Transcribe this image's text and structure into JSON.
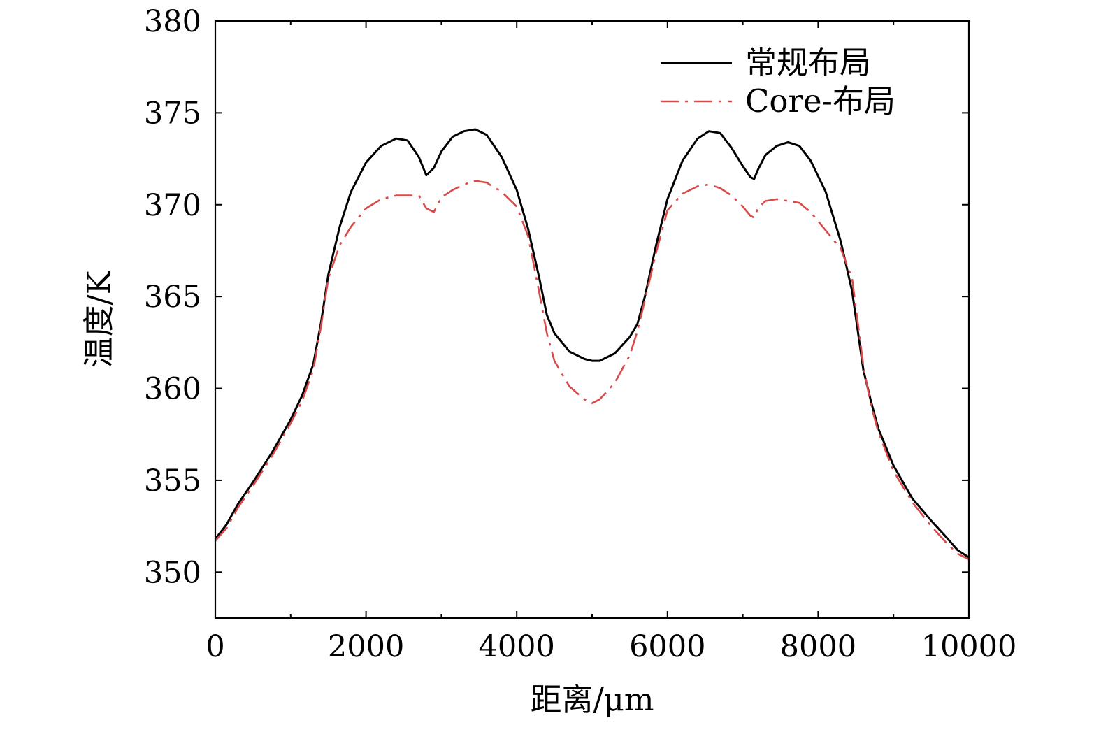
{
  "chart_data": {
    "type": "line",
    "title": "",
    "xlabel": "距离/μm",
    "ylabel": "温度/K",
    "xlim": [
      0,
      10000
    ],
    "ylim": [
      347.5,
      380
    ],
    "xticks": [
      0,
      2000,
      4000,
      6000,
      8000,
      10000
    ],
    "xtick_labels": [
      "0",
      "2000",
      "4000",
      "6000",
      "8000",
      "10000"
    ],
    "xminor_ticks": [
      1000,
      3000,
      5000,
      7000,
      9000
    ],
    "yticks": [
      350,
      355,
      360,
      365,
      370,
      375,
      380
    ],
    "ytick_labels": [
      "350",
      "355",
      "360",
      "365",
      "370",
      "375",
      "380"
    ],
    "grid": false,
    "legend_position": "top-right",
    "series": [
      {
        "name": "常规布局",
        "color": "#000000",
        "style": "solid",
        "x": [
          0,
          150,
          300,
          500,
          750,
          1000,
          1150,
          1300,
          1400,
          1500,
          1650,
          1800,
          2000,
          2200,
          2400,
          2550,
          2700,
          2800,
          2900,
          3000,
          3150,
          3300,
          3450,
          3600,
          3800,
          4000,
          4150,
          4300,
          4400,
          4500,
          4700,
          4900,
          5000,
          5100,
          5300,
          5500,
          5600,
          5700,
          5850,
          6000,
          6200,
          6400,
          6550,
          6700,
          6850,
          7000,
          7100,
          7150,
          7200,
          7300,
          7450,
          7600,
          7750,
          7900,
          8100,
          8300,
          8450,
          8600,
          8700,
          8800,
          9000,
          9250,
          9500,
          9700,
          9850,
          10000
        ],
        "y": [
          351.8,
          352.6,
          353.7,
          354.9,
          356.5,
          358.3,
          359.6,
          361.3,
          363.5,
          366.2,
          368.8,
          370.7,
          372.3,
          373.2,
          373.6,
          373.5,
          372.6,
          371.6,
          372.0,
          372.9,
          373.7,
          374.0,
          374.1,
          373.8,
          372.6,
          370.8,
          368.7,
          366.0,
          364.0,
          363.0,
          362.0,
          361.6,
          361.5,
          361.5,
          361.9,
          362.8,
          363.5,
          365.0,
          367.8,
          370.3,
          372.4,
          373.6,
          374.0,
          373.9,
          373.1,
          372.1,
          371.5,
          371.4,
          371.9,
          372.7,
          373.2,
          373.4,
          373.2,
          372.4,
          370.7,
          368.0,
          365.3,
          361.0,
          359.3,
          357.8,
          355.8,
          354.0,
          352.8,
          351.9,
          351.2,
          350.8
        ]
      },
      {
        "name": "Core-布局",
        "color": "#d94a4a",
        "style": "dashdot",
        "x": [
          0,
          150,
          300,
          500,
          750,
          1000,
          1150,
          1300,
          1400,
          1500,
          1650,
          1800,
          2000,
          2200,
          2400,
          2550,
          2700,
          2800,
          2900,
          3000,
          3150,
          3300,
          3450,
          3600,
          3800,
          4000,
          4150,
          4300,
          4400,
          4500,
          4700,
          4900,
          5000,
          5100,
          5300,
          5500,
          5600,
          5700,
          5850,
          6000,
          6200,
          6400,
          6550,
          6700,
          6850,
          7000,
          7100,
          7150,
          7200,
          7300,
          7450,
          7600,
          7750,
          7900,
          8100,
          8300,
          8450,
          8600,
          8700,
          8800,
          9000,
          9250,
          9500,
          9700,
          9850,
          10000
        ],
        "y": [
          351.7,
          352.4,
          353.5,
          354.7,
          356.3,
          358.1,
          359.3,
          361.0,
          363.3,
          366.0,
          367.8,
          368.8,
          369.8,
          370.3,
          370.5,
          370.5,
          370.5,
          369.8,
          369.6,
          370.4,
          370.8,
          371.1,
          371.3,
          371.2,
          370.7,
          369.9,
          368.3,
          365.2,
          363.0,
          361.5,
          360.1,
          359.4,
          359.2,
          359.4,
          360.3,
          361.8,
          363.1,
          364.8,
          367.4,
          369.7,
          370.6,
          371.0,
          371.1,
          370.9,
          370.5,
          369.9,
          369.4,
          369.3,
          369.8,
          370.2,
          370.3,
          370.2,
          370.1,
          369.6,
          368.6,
          367.6,
          366.0,
          361.2,
          359.1,
          357.6,
          355.5,
          353.8,
          352.5,
          351.6,
          351.0,
          350.7
        ]
      }
    ]
  }
}
